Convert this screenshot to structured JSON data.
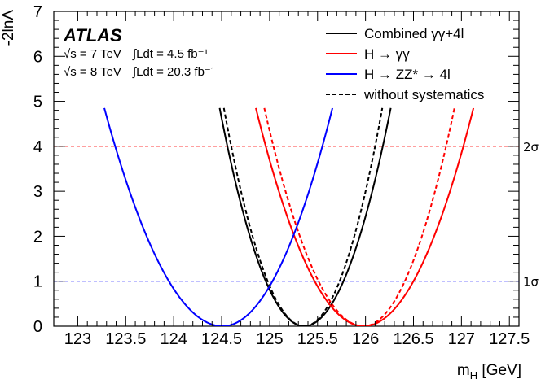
{
  "chart_data": {
    "type": "line",
    "experiment": "ATLAS",
    "info_lines": [
      {
        "sqrt_s": "√s = 7 TeV",
        "lumi": "∫Ldt = 4.5 fb⁻¹"
      },
      {
        "sqrt_s": "√s = 8 TeV",
        "lumi": "∫Ldt = 20.3 fb⁻¹"
      }
    ],
    "xlabel": "m_H [GeV]",
    "xlabel_main": "m",
    "xlabel_sub": "H",
    "xlabel_unit": " [GeV]",
    "ylabel": "-2lnΛ",
    "xlim": [
      122.75,
      127.6
    ],
    "ylim": [
      0,
      7
    ],
    "x_ticks": [
      123,
      123.5,
      124,
      124.5,
      125,
      125.5,
      126,
      126.5,
      127,
      127.5
    ],
    "x_tick_labels": [
      "123",
      "123.5",
      "124",
      "124.5",
      "125",
      "125.5",
      "126",
      "126.5",
      "127",
      "127.5"
    ],
    "y_ticks": [
      0,
      1,
      2,
      3,
      4,
      5,
      6,
      7
    ],
    "y_tick_labels": [
      "0",
      "1",
      "2",
      "3",
      "4",
      "5",
      "6",
      "7"
    ],
    "reference_lines": [
      {
        "y": 1,
        "label": "1σ",
        "color": "#0000ff"
      },
      {
        "y": 4,
        "label": "2σ",
        "color": "#ff0000"
      }
    ],
    "legend_position": "top-right",
    "legend": [
      {
        "label": "Combined γγ+4l",
        "color": "#000000",
        "style": "solid"
      },
      {
        "label": "H → γγ",
        "color": "#ff0000",
        "style": "solid"
      },
      {
        "label": "H → ZZ* → 4l",
        "color": "#0000ff",
        "style": "solid"
      },
      {
        "label": "without systematics",
        "color": "#000000",
        "style": "dashed"
      }
    ],
    "series": [
      {
        "legend_index": 0,
        "color": "#000000",
        "style": "solid",
        "min_x": 125.36,
        "width_left": 0.4,
        "width_right": 0.41,
        "ymax": 4.85
      },
      {
        "legend_index": 3,
        "color": "#000000",
        "style": "dashed",
        "min_x": 125.36,
        "width_left": 0.38,
        "width_right": 0.37,
        "ymax": 4.85
      },
      {
        "legend_index": 1,
        "color": "#ff0000",
        "style": "solid",
        "min_x": 125.98,
        "width_left": 0.51,
        "width_right": 0.52,
        "ymax": 4.85
      },
      {
        "legend_index": 1,
        "color": "#ff0000",
        "style": "dashed",
        "min_x": 125.98,
        "width_left": 0.47,
        "width_right": 0.43,
        "ymax": 4.85
      },
      {
        "legend_index": 2,
        "color": "#0000ff",
        "style": "solid",
        "min_x": 124.51,
        "width_left": 0.56,
        "width_right": 0.52,
        "ymax": 4.85
      }
    ]
  }
}
